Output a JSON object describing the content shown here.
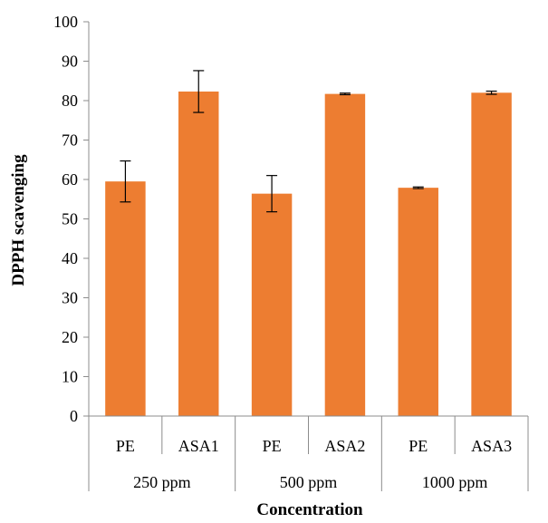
{
  "chart_data": {
    "type": "bar",
    "title": "",
    "xlabel": "Concentration",
    "ylabel": "DPPH scavenging",
    "ylim": [
      0,
      100
    ],
    "ytick_step": 10,
    "yticks": [
      "0",
      "10",
      "20",
      "30",
      "40",
      "50",
      "60",
      "70",
      "80",
      "90",
      "100"
    ],
    "grid": false,
    "bar_color": "#ED7D31",
    "categories": [
      "PE",
      "ASA1",
      "PE",
      "ASA2",
      "PE",
      "ASA3"
    ],
    "groups": [
      {
        "label": "250 ppm",
        "count": 2
      },
      {
        "label": "500 ppm",
        "count": 2
      },
      {
        "label": "1000 ppm",
        "count": 2
      }
    ],
    "values": [
      59.5,
      82.3,
      56.4,
      81.7,
      57.9,
      82.0
    ],
    "errors": [
      5.2,
      5.3,
      4.6,
      0.2,
      0.2,
      0.4
    ]
  }
}
